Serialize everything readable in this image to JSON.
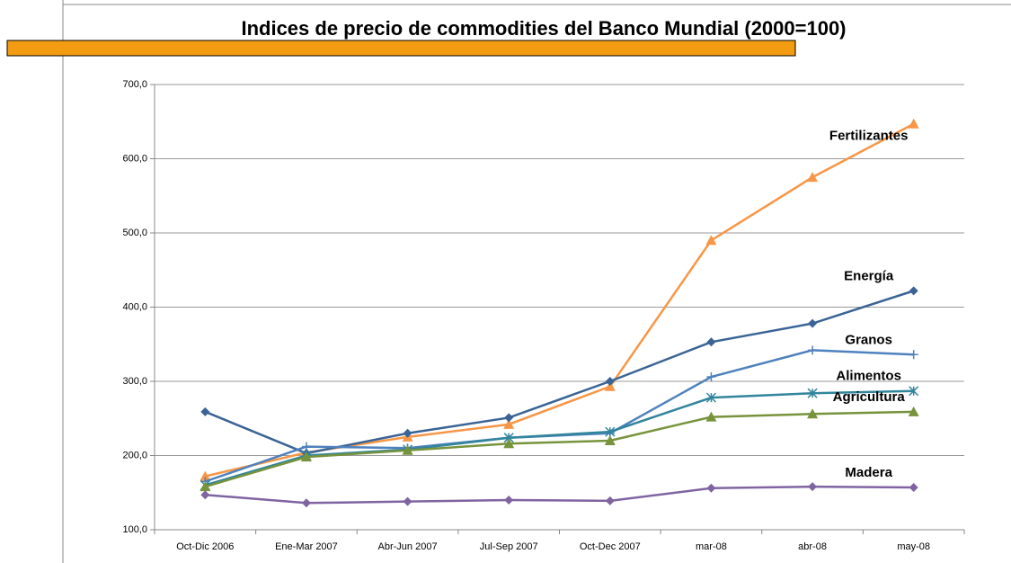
{
  "chart_data": {
    "type": "line",
    "title": "Indices de precio de commodities del Banco Mundial (2000=100)",
    "categories": [
      "Oct-Dic 2006",
      "Ene-Mar 2007",
      "Abr-Jun 2007",
      "Jul-Sep 2007",
      "Oct-Dec 2007",
      "mar-08",
      "abr-08",
      "may-08"
    ],
    "series": [
      {
        "name": "Fertilizantes",
        "color": "#f79646",
        "marker": "triangle",
        "values": [
          172,
          204,
          225,
          242,
          293,
          490,
          575,
          647
        ]
      },
      {
        "name": "Energía",
        "color": "#3a6496",
        "marker": "diamond",
        "values": [
          259,
          203,
          230,
          251,
          300,
          353,
          378,
          422
        ]
      },
      {
        "name": "Granos",
        "color": "#4f81bd",
        "marker": "plus",
        "values": [
          165,
          212,
          210,
          224,
          230,
          306,
          342,
          336
        ]
      },
      {
        "name": "Alimentos",
        "color": "#31859c",
        "marker": "star",
        "values": [
          160,
          200,
          208,
          224,
          232,
          278,
          284,
          287
        ]
      },
      {
        "name": "Agricultura",
        "color": "#77933c",
        "marker": "triangle",
        "values": [
          158,
          198,
          207,
          216,
          220,
          252,
          256,
          259
        ]
      },
      {
        "name": "Madera",
        "color": "#8064a2",
        "marker": "diamond",
        "values": [
          147,
          136,
          138,
          140,
          139,
          156,
          158,
          157
        ]
      }
    ],
    "ylim": [
      100,
      700
    ],
    "yticks": [
      {
        "value": 100,
        "label": "100,0"
      },
      {
        "value": 200,
        "label": "200,0"
      },
      {
        "value": 300,
        "label": "300,0"
      },
      {
        "value": 400,
        "label": "400,0"
      },
      {
        "value": 500,
        "label": "500,0"
      },
      {
        "value": 600,
        "label": "600,0"
      },
      {
        "value": 700,
        "label": "700,0"
      }
    ],
    "grid": true
  }
}
